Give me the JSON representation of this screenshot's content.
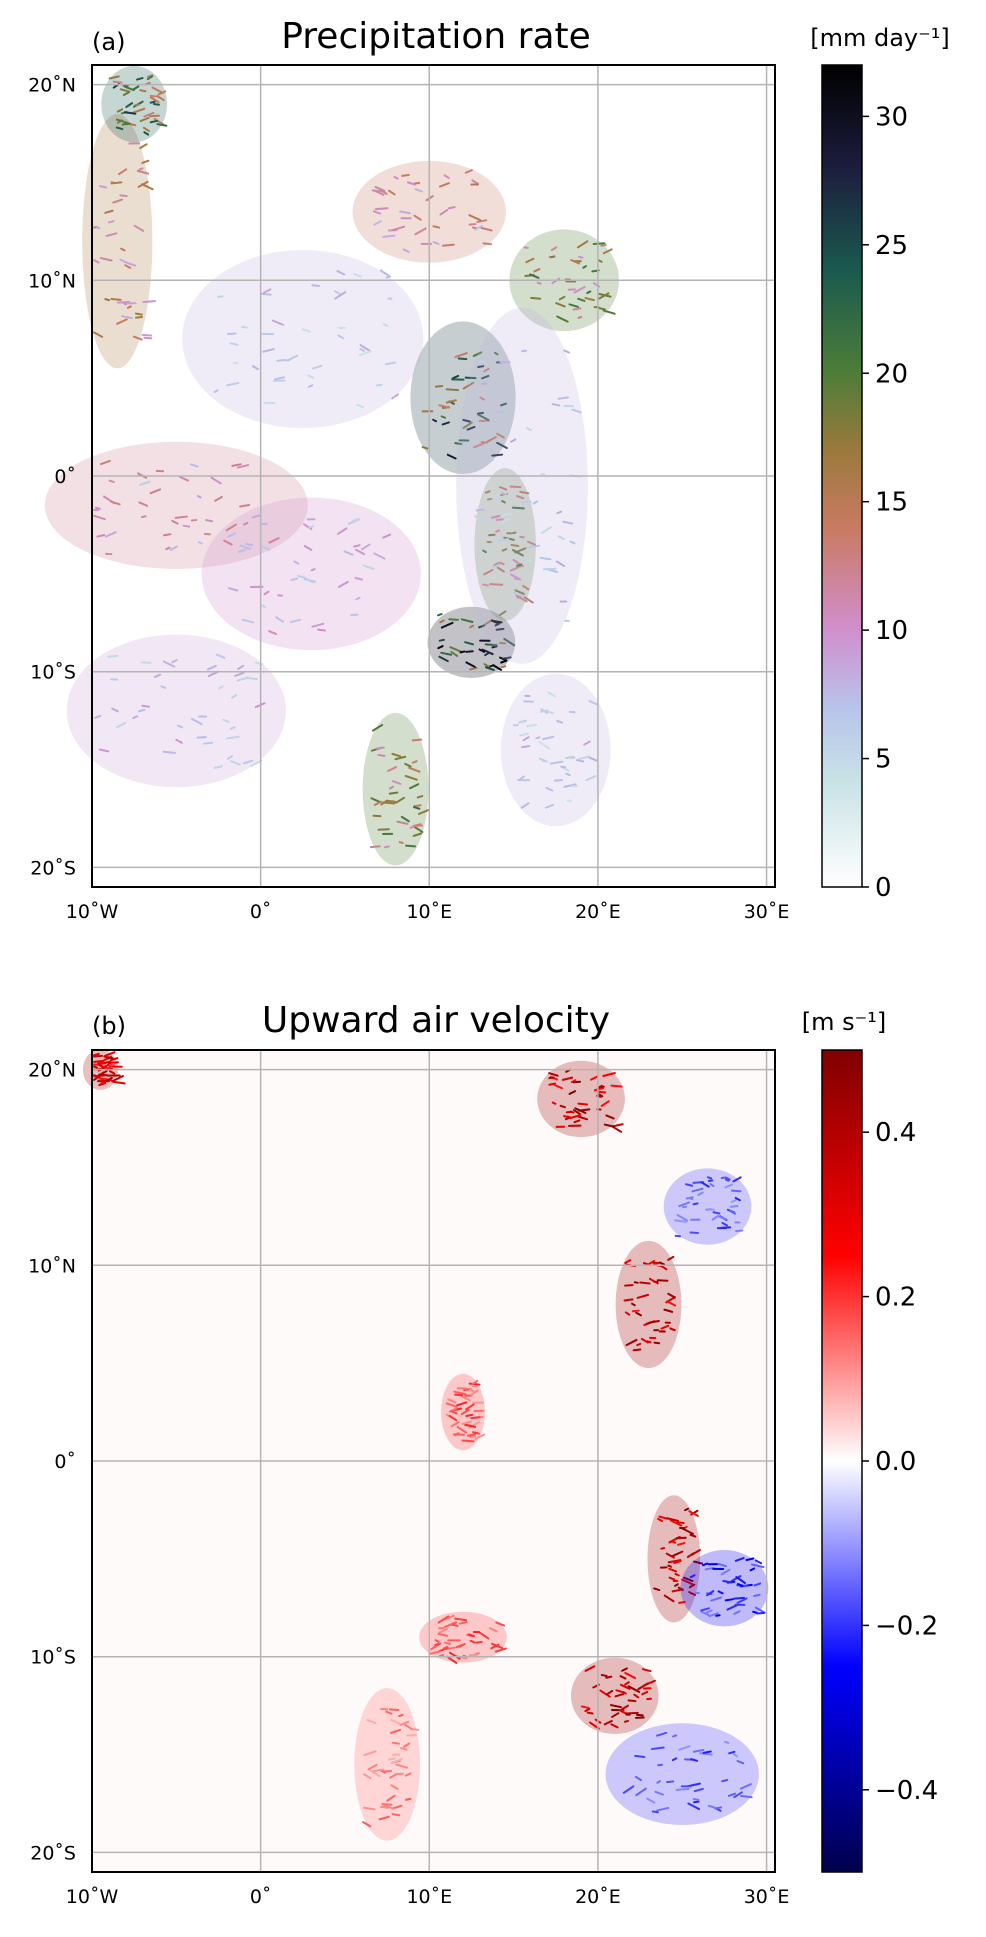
{
  "chart_data": [
    {
      "type": "heatmap",
      "panel_label": "(a)",
      "title": "Precipitation rate",
      "units": "[mm day⁻¹]",
      "colormap": "cubehelix_r",
      "colorbar": {
        "min": 0,
        "max": 32,
        "ticks": [
          0,
          5,
          10,
          15,
          20,
          25,
          30
        ],
        "stops": [
          {
            "v": 0,
            "c": "#ffffff"
          },
          {
            "v": 4,
            "c": "#c9e3e6"
          },
          {
            "v": 7,
            "c": "#b8c3ea"
          },
          {
            "v": 10,
            "c": "#d08fcd"
          },
          {
            "v": 14,
            "c": "#c97a62"
          },
          {
            "v": 17,
            "c": "#9a7a3c"
          },
          {
            "v": 20,
            "c": "#4e7d38"
          },
          {
            "v": 24,
            "c": "#1a5a4e"
          },
          {
            "v": 28,
            "c": "#1c1d3d"
          },
          {
            "v": 32,
            "c": "#000000"
          }
        ]
      },
      "xlim": [
        -10,
        30.5
      ],
      "ylim": [
        -21,
        21
      ],
      "xticks": [
        {
          "v": -10,
          "label": "10˚W"
        },
        {
          "v": 0,
          "label": "0˚"
        },
        {
          "v": 10,
          "label": "10˚E"
        },
        {
          "v": 20,
          "label": "20˚E"
        },
        {
          "v": 30,
          "label": "30˚E"
        }
      ],
      "yticks": [
        {
          "v": 20,
          "label": "20˚N"
        },
        {
          "v": 10,
          "label": "10˚N"
        },
        {
          "v": 0,
          "label": "0˚"
        },
        {
          "v": -10,
          "label": "10˚S"
        },
        {
          "v": -20,
          "label": "20˚S"
        }
      ],
      "grid": true,
      "features": [
        {
          "lon": 12.0,
          "lat": 4.0,
          "sx": 2.4,
          "sy": 3.0,
          "v": 26
        },
        {
          "lon": 12.5,
          "lat": -8.5,
          "sx": 2.0,
          "sy": 1.4,
          "v": 30
        },
        {
          "lon": 8.0,
          "lat": -16.0,
          "sx": 1.5,
          "sy": 3.0,
          "v": 20
        },
        {
          "lon": 14.5,
          "lat": -3.5,
          "sx": 1.4,
          "sy": 3.0,
          "v": 20
        },
        {
          "lon": 18.0,
          "lat": 10.0,
          "sx": 2.5,
          "sy": 2.0,
          "v": 20
        },
        {
          "lon": 10.0,
          "lat": 13.5,
          "sx": 3.5,
          "sy": 2.0,
          "v": 14
        },
        {
          "lon": -8.5,
          "lat": 12.0,
          "sx": 1.6,
          "sy": 5.0,
          "v": 16
        },
        {
          "lon": -7.5,
          "lat": 19.0,
          "sx": 1.5,
          "sy": 1.5,
          "v": 24
        },
        {
          "lon": -5.0,
          "lat": -1.5,
          "sx": 6.0,
          "sy": 2.5,
          "v": 12
        },
        {
          "lon": 3.0,
          "lat": -5.0,
          "sx": 5.0,
          "sy": 3.0,
          "v": 10
        },
        {
          "lon": -5.0,
          "lat": -12.0,
          "sx": 5.0,
          "sy": 3.0,
          "v": 9
        },
        {
          "lon": 15.5,
          "lat": -0.5,
          "sx": 3.0,
          "sy": 7.0,
          "v": 8
        },
        {
          "lon": 17.5,
          "lat": -14.0,
          "sx": 2.5,
          "sy": 3.0,
          "v": 8
        },
        {
          "lon": 2.5,
          "lat": 7.0,
          "sx": 5.5,
          "sy": 3.5,
          "v": 8
        }
      ]
    },
    {
      "type": "heatmap",
      "panel_label": "(b)",
      "title": "Upward air velocity",
      "units": "[m s⁻¹]",
      "colormap": "seismic",
      "colorbar": {
        "min": -0.5,
        "max": 0.5,
        "ticks": [
          -0.4,
          -0.2,
          0.0,
          0.2,
          0.4
        ],
        "tick_labels": [
          "−0.4",
          "−0.2",
          "0.0",
          "0.2",
          "0.4"
        ],
        "stops": [
          {
            "v": -0.5,
            "c": "#00004c"
          },
          {
            "v": -0.25,
            "c": "#0000ff"
          },
          {
            "v": 0.0,
            "c": "#ffffff"
          },
          {
            "v": 0.25,
            "c": "#ff0000"
          },
          {
            "v": 0.5,
            "c": "#800000"
          }
        ]
      },
      "xlim": [
        -10,
        30.5
      ],
      "ylim": [
        -21,
        21
      ],
      "xticks": [
        {
          "v": -10,
          "label": "10˚W"
        },
        {
          "v": 0,
          "label": "0˚"
        },
        {
          "v": 10,
          "label": "10˚E"
        },
        {
          "v": 20,
          "label": "20˚E"
        },
        {
          "v": 30,
          "label": "30˚E"
        }
      ],
      "yticks": [
        {
          "v": 20,
          "label": "20˚N"
        },
        {
          "v": 10,
          "label": "10˚N"
        },
        {
          "v": 0,
          "label": "0˚"
        },
        {
          "v": -10,
          "label": "10˚S"
        },
        {
          "v": -20,
          "label": "20˚S"
        }
      ],
      "grid": true,
      "features": [
        {
          "lon": 19.0,
          "lat": 18.5,
          "sx": 2.0,
          "sy": 1.5,
          "v": 0.45
        },
        {
          "lon": 23.0,
          "lat": 8.0,
          "sx": 1.5,
          "sy": 2.5,
          "v": 0.45
        },
        {
          "lon": 24.5,
          "lat": -5.0,
          "sx": 1.2,
          "sy": 2.5,
          "v": 0.45
        },
        {
          "lon": 21.0,
          "lat": -12.0,
          "sx": 2.0,
          "sy": 1.5,
          "v": 0.45
        },
        {
          "lon": 27.5,
          "lat": -6.5,
          "sx": 2.0,
          "sy": 1.5,
          "v": -0.25
        },
        {
          "lon": 25.0,
          "lat": -16.0,
          "sx": 3.5,
          "sy": 2.0,
          "v": -0.2
        },
        {
          "lon": 26.5,
          "lat": 13.0,
          "sx": 2.0,
          "sy": 1.5,
          "v": -0.2
        },
        {
          "lon": 7.5,
          "lat": -15.5,
          "sx": 1.5,
          "sy": 3.0,
          "v": 0.15
        },
        {
          "lon": 12.0,
          "lat": -9.0,
          "sx": 2.0,
          "sy": 1.0,
          "v": 0.2
        },
        {
          "lon": 12.0,
          "lat": 2.5,
          "sx": 1.0,
          "sy": 1.5,
          "v": 0.2
        },
        {
          "lon": -9.5,
          "lat": 20.0,
          "sx": 0.8,
          "sy": 0.8,
          "v": 0.4
        }
      ]
    }
  ]
}
